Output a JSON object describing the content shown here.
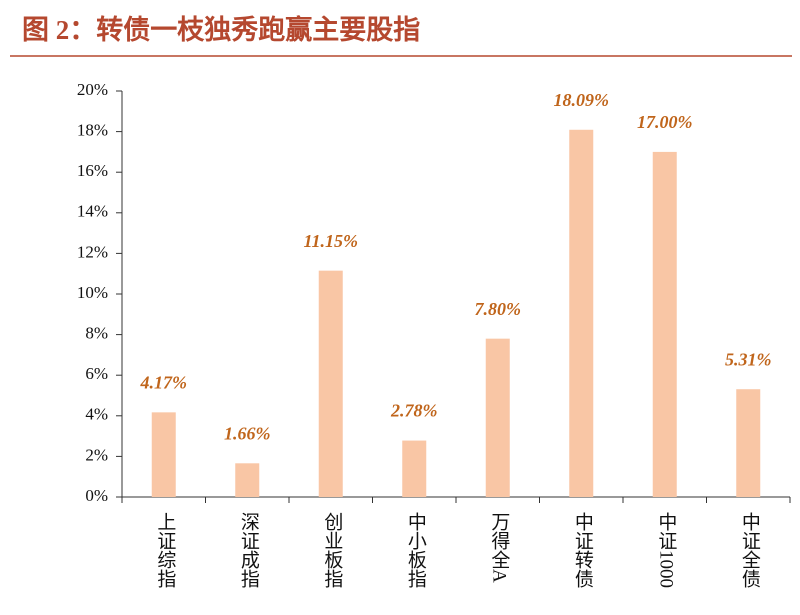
{
  "chart_data": {
    "type": "bar",
    "title": "图 2：转债一枝独秀跑赢主要股指",
    "categories": [
      "上证综指",
      "深证成指",
      "创业板指",
      "中小板指",
      "万得全A",
      "中证转债",
      "中证1000",
      "中证全债"
    ],
    "values": [
      4.17,
      1.66,
      11.15,
      2.78,
      7.8,
      18.09,
      17.0,
      5.31
    ],
    "value_labels": [
      "4.17%",
      "1.66%",
      "11.15%",
      "2.78%",
      "7.80%",
      "18.09%",
      "17.00%",
      "5.31%"
    ],
    "color": "#f9c6a5",
    "ylim": [
      0,
      20
    ],
    "yticks": [
      {
        "value": 0,
        "label": "0%"
      },
      {
        "value": 2,
        "label": "2%"
      },
      {
        "value": 4,
        "label": "4%"
      },
      {
        "value": 6,
        "label": "6%"
      },
      {
        "value": 8,
        "label": "8%"
      },
      {
        "value": 10,
        "label": "10%"
      },
      {
        "value": 12,
        "label": "12%"
      },
      {
        "value": 14,
        "label": "14%"
      },
      {
        "value": 16,
        "label": "16%"
      },
      {
        "value": 18,
        "label": "18%"
      },
      {
        "value": 20,
        "label": "20%"
      }
    ],
    "grid": false
  }
}
